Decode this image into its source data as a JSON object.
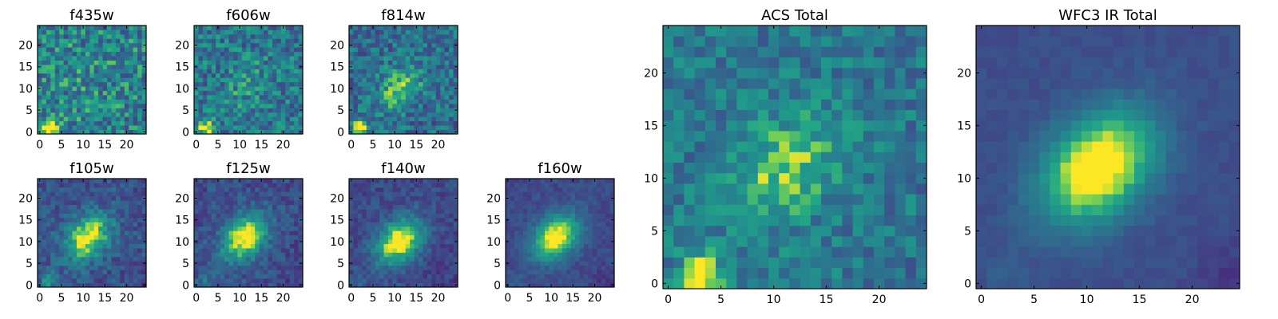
{
  "chart_data": [
    {
      "type": "heatmap",
      "title": "f435w",
      "colormap": "viridis",
      "xlim": [
        0,
        24
      ],
      "ylim": [
        0,
        24
      ],
      "xticks": [
        "0",
        "5",
        "10",
        "15",
        "20"
      ],
      "yticks": [
        "0",
        "5",
        "10",
        "15",
        "20"
      ],
      "blob": {
        "cx": 11,
        "cy": 11,
        "strength": 0.05
      },
      "corner_blob": {
        "cx": 2,
        "cy": 1,
        "strength": 0.75
      },
      "noise": 0.55,
      "base": 0.55
    },
    {
      "type": "heatmap",
      "title": "f606w",
      "colormap": "viridis",
      "xlim": [
        0,
        24
      ],
      "ylim": [
        0,
        24
      ],
      "xticks": [
        "0",
        "5",
        "10",
        "15",
        "20"
      ],
      "yticks": [
        "0",
        "5",
        "10",
        "15",
        "20"
      ],
      "blob": {
        "cx": 12,
        "cy": 11,
        "strength": 0.12
      },
      "corner_blob": {
        "cx": 2,
        "cy": 1,
        "strength": 0.6
      },
      "noise": 0.5,
      "base": 0.5
    },
    {
      "type": "heatmap",
      "title": "f814w",
      "colormap": "viridis",
      "xlim": [
        0,
        24
      ],
      "ylim": [
        0,
        24
      ],
      "xticks": [
        "0",
        "5",
        "10",
        "15",
        "20"
      ],
      "yticks": [
        "0",
        "5",
        "10",
        "15",
        "20"
      ],
      "blob": {
        "cx": 11,
        "cy": 10,
        "strength": 0.35
      },
      "corner_blob": {
        "cx": 2,
        "cy": 1,
        "strength": 0.5
      },
      "noise": 0.45,
      "base": 0.45
    },
    {
      "type": "heatmap",
      "title": "f105w",
      "colormap": "viridis",
      "xlim": [
        0,
        24
      ],
      "ylim": [
        0,
        24
      ],
      "xticks": [
        "0",
        "5",
        "10",
        "15",
        "20"
      ],
      "yticks": [
        "0",
        "5",
        "10",
        "15",
        "20"
      ],
      "blob": {
        "cx": 11,
        "cy": 11,
        "strength": 0.7
      },
      "corner_blob": {
        "cx": 2,
        "cy": 1,
        "strength": 0.35
      },
      "noise": 0.28,
      "base": 0.32
    },
    {
      "type": "heatmap",
      "title": "f125w",
      "colormap": "viridis",
      "xlim": [
        0,
        24
      ],
      "ylim": [
        0,
        24
      ],
      "xticks": [
        "0",
        "5",
        "10",
        "15",
        "20"
      ],
      "yticks": [
        "0",
        "5",
        "10",
        "15",
        "20"
      ],
      "blob": {
        "cx": 11,
        "cy": 11,
        "strength": 0.75
      },
      "corner_blob": {
        "cx": 2,
        "cy": 1,
        "strength": 0.2
      },
      "noise": 0.25,
      "base": 0.3
    },
    {
      "type": "heatmap",
      "title": "f140w",
      "colormap": "viridis",
      "xlim": [
        0,
        24
      ],
      "ylim": [
        0,
        24
      ],
      "xticks": [
        "0",
        "5",
        "10",
        "15",
        "20"
      ],
      "yticks": [
        "0",
        "5",
        "10",
        "15",
        "20"
      ],
      "blob": {
        "cx": 11,
        "cy": 10,
        "strength": 0.78
      },
      "corner_blob": {
        "cx": 2,
        "cy": 1,
        "strength": 0.15
      },
      "noise": 0.22,
      "base": 0.28
    },
    {
      "type": "heatmap",
      "title": "f160w",
      "colormap": "viridis",
      "xlim": [
        0,
        24
      ],
      "ylim": [
        0,
        24
      ],
      "xticks": [
        "0",
        "5",
        "10",
        "15",
        "20"
      ],
      "yticks": [
        "0",
        "5",
        "10",
        "15",
        "20"
      ],
      "blob": {
        "cx": 11,
        "cy": 11,
        "strength": 0.8
      },
      "corner_blob": {
        "cx": 2,
        "cy": 1,
        "strength": 0.1
      },
      "noise": 0.15,
      "base": 0.28
    },
    {
      "type": "heatmap",
      "title": "ACS Total",
      "colormap": "viridis",
      "xlim": [
        0,
        24
      ],
      "ylim": [
        0,
        24
      ],
      "xticks": [
        "0",
        "5",
        "10",
        "15",
        "20"
      ],
      "yticks": [
        "0",
        "5",
        "10",
        "15",
        "20"
      ],
      "blob": {
        "cx": 11,
        "cy": 11,
        "strength": 0.35
      },
      "corner_blob": {
        "cx": 3,
        "cy": 1,
        "strength": 0.8
      },
      "noise": 0.35,
      "base": 0.5
    },
    {
      "type": "heatmap",
      "title": "WFC3 IR Total",
      "colormap": "viridis",
      "xlim": [
        0,
        24
      ],
      "ylim": [
        0,
        24
      ],
      "xticks": [
        "0",
        "5",
        "10",
        "15",
        "20"
      ],
      "yticks": [
        "0",
        "5",
        "10",
        "15",
        "20"
      ],
      "blob": {
        "cx": 11,
        "cy": 11,
        "strength": 0.85
      },
      "corner_blob": {
        "cx": 2,
        "cy": 1,
        "strength": 0.1
      },
      "noise": 0.08,
      "base": 0.3
    }
  ]
}
